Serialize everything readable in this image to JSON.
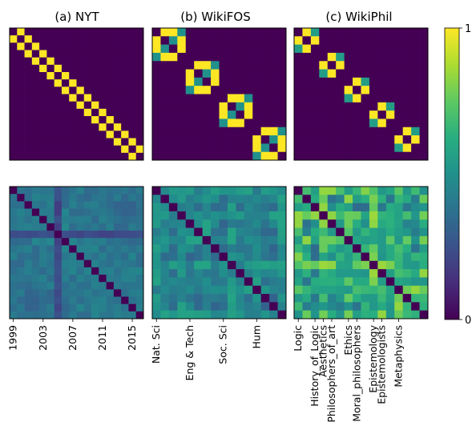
{
  "colors": {
    "scale": [
      "#440154",
      "#472d7b",
      "#3b528b",
      "#2c728e",
      "#21918c",
      "#28ae80",
      "#5ec962",
      "#addc30",
      "#fde725"
    ],
    "frame": "#000000",
    "background": "#ffffff"
  },
  "chart_data": {
    "type": "heatmap",
    "colorbar": {
      "min": 0,
      "max": 1,
      "tick_labels": [
        "0",
        "1"
      ],
      "colormap": "viridis"
    },
    "panels": [
      {
        "key": "nyt",
        "title": "(a) NYT",
        "n": 18,
        "x_ticks": [
          {
            "index": 0,
            "label": "1999"
          },
          {
            "index": 4,
            "label": "2003"
          },
          {
            "index": 8,
            "label": "2007"
          },
          {
            "index": 12,
            "label": "2011"
          },
          {
            "index": 16,
            "label": "2015"
          }
        ],
        "top": {
          "description": "near-diagonal band",
          "band_offsets": [
            0,
            1
          ],
          "diagonal_value": 0,
          "band_value": 1,
          "off_band_value": 0
        },
        "bottom": {
          "description": "smooth similarity matrix",
          "diagonal_value": 0,
          "base_value": 0.42,
          "anomaly_index": 6,
          "anomaly_value": 0.18
        }
      },
      {
        "key": "wikifos",
        "title": "(b) WikiFOS",
        "n": 16,
        "x_ticks": [
          {
            "index": 0,
            "label": "Nat. Sci"
          },
          {
            "index": 4,
            "label": "Eng & Tech"
          },
          {
            "index": 8,
            "label": "Soc. Sci"
          },
          {
            "index": 12,
            "label": "Hum"
          }
        ],
        "top": {
          "description": "block diagonal",
          "block_size": 4,
          "diagonal_value": 0,
          "cross_value": 0.5,
          "block_value": 1,
          "off_block_value": 0
        },
        "bottom": {
          "description": "noisy similarity matrix",
          "diagonal_value": 0,
          "base_value": 0.4,
          "variation": 0.18
        }
      },
      {
        "key": "wikiphil",
        "title": "(c) WikiPhil",
        "n": 16,
        "x_ticks": [
          {
            "index": 0,
            "label": "Logic"
          },
          {
            "index": 2,
            "label": "History_of_Logic"
          },
          {
            "index": 3,
            "label": "Aesthetics"
          },
          {
            "index": 4,
            "label": "Philosophers_of_art"
          },
          {
            "index": 6,
            "label": "Ethics"
          },
          {
            "index": 7,
            "label": "Moral_philosophers"
          },
          {
            "index": 9,
            "label": "Epistemology"
          },
          {
            "index": 10,
            "label": "Epistemologists"
          },
          {
            "index": 12,
            "label": "Metaphysics"
          }
        ],
        "top": {
          "description": "staggered blocks",
          "block_starts": [
            0,
            3,
            6,
            9,
            12
          ],
          "block_size": 3,
          "diagonal_value": 0,
          "cross_value": 0.55,
          "block_value": 1,
          "off_block_value": 0
        },
        "bottom": {
          "description": "striped similarity matrix",
          "diagonal_value": 0,
          "base_value": 0.5,
          "variation": 0.35
        }
      }
    ]
  }
}
